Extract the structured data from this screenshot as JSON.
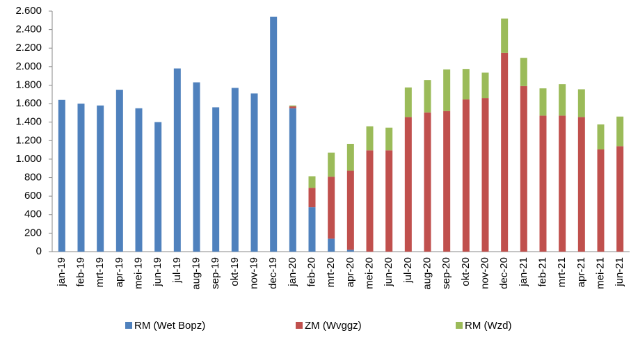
{
  "chart_data": {
    "type": "stacked_bar",
    "categories": [
      "jan-19",
      "feb-19",
      "mrt-19",
      "apr-19",
      "mei-19",
      "jun-19",
      "jul-19",
      "aug-19",
      "sep-19",
      "okt-19",
      "nov-19",
      "dec-19",
      "jan-20",
      "feb-20",
      "mrt-20",
      "apr-20",
      "mei-20",
      "jun-20",
      "jul-20",
      "aug-20",
      "sep-20",
      "okt-20",
      "nov-20",
      "dec-20",
      "jan-21",
      "feb-21",
      "mrt-21",
      "apr-21",
      "mei-21",
      "jun-21"
    ],
    "series": [
      {
        "name": "RM (Wet Bopz)",
        "color": "#4f81bd",
        "values": [
          1640,
          1600,
          1580,
          1750,
          1550,
          1400,
          1980,
          1830,
          1560,
          1770,
          1710,
          2540,
          1550,
          480,
          140,
          20,
          0,
          0,
          0,
          0,
          0,
          0,
          0,
          0,
          0,
          0,
          0,
          0,
          0,
          0
        ]
      },
      {
        "name": "ZM (Wvggz)",
        "color": "#c0504d",
        "values": [
          0,
          0,
          0,
          0,
          0,
          0,
          0,
          0,
          0,
          0,
          0,
          0,
          20,
          210,
          670,
          855,
          1095,
          1095,
          1455,
          1505,
          1520,
          1645,
          1660,
          2150,
          1790,
          1470,
          1470,
          1455,
          1105,
          1140
        ]
      },
      {
        "name": "RM (Wzd)",
        "color": "#9bbb59",
        "values": [
          0,
          0,
          0,
          0,
          0,
          0,
          0,
          0,
          0,
          0,
          0,
          0,
          10,
          125,
          260,
          290,
          260,
          245,
          320,
          350,
          450,
          330,
          275,
          370,
          305,
          295,
          340,
          300,
          270,
          320
        ]
      }
    ],
    "ylim": [
      0,
      2600
    ],
    "yticks": [
      0,
      200,
      400,
      600,
      800,
      {
        "value": 1000,
        "label": "1.000"
      },
      {
        "value": 1200,
        "label": "1.200"
      },
      {
        "value": 1400,
        "label": "1.400"
      },
      {
        "value": 1600,
        "label": "1.600"
      },
      {
        "value": 1800,
        "label": "1.800"
      },
      {
        "value": 2000,
        "label": "2.000"
      },
      {
        "value": 2200,
        "label": "2.200"
      },
      {
        "value": 2400,
        "label": "2.400"
      },
      {
        "value": 2600,
        "label": "2.600"
      }
    ],
    "grid": false,
    "legend": "bottom"
  }
}
